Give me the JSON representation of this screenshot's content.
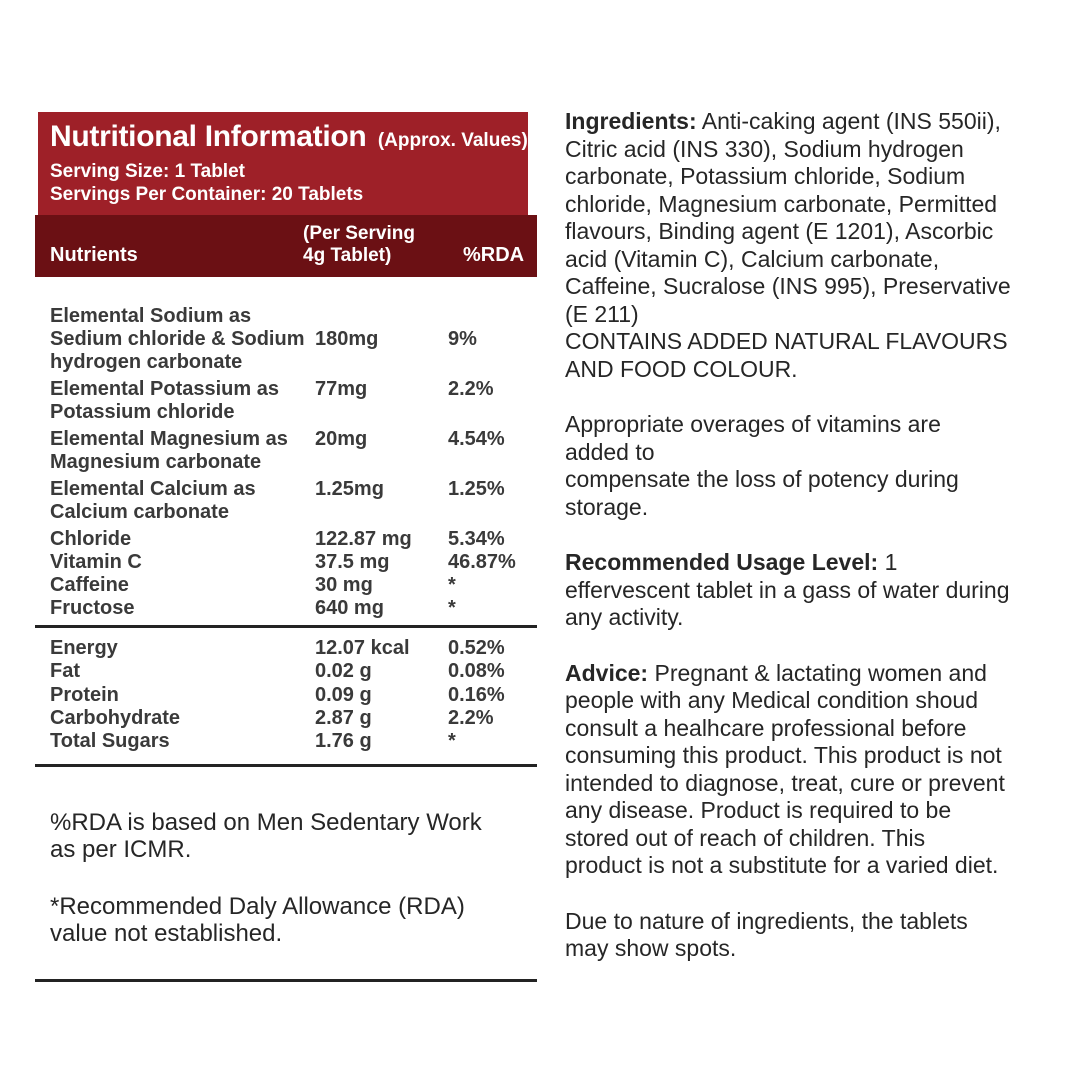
{
  "colors": {
    "header_red": "#9E2028",
    "header_dark": "#6B1014",
    "line": "#232323",
    "text_table": "#3A3A3A",
    "text_body": "#262626"
  },
  "nutrition": {
    "header": {
      "title": "Nutritional Information",
      "approx": "(Approx. Values)",
      "serving_size": "Serving Size: 1 Tablet",
      "servings_per_container": "Servings Per Container: 20 Tablets"
    },
    "table": {
      "columns": {
        "nutrients": "Nutrients",
        "per_serving": "(Per Serving\n4g Tablet)",
        "rda": "%RDA"
      },
      "rows_main": [
        {
          "name": "Elemental Sodium as\nSedium chloride & Sodium\nhydrogen carbonate",
          "value": "180mg",
          "rda": "9%"
        },
        {
          "name": "Elemental Potassium as\nPotassium chloride",
          "value": "77mg",
          "rda": "2.2%"
        },
        {
          "name": "Elemental Magnesium as\nMagnesium carbonate",
          "value": "20mg",
          "rda": "4.54%"
        },
        {
          "name": "Elemental Calcium as\nCalcium carbonate",
          "value": "1.25mg",
          "rda": "1.25%"
        },
        {
          "name": "Chloride",
          "value": "122.87 mg",
          "rda": "5.34%"
        },
        {
          "name": "Vitamin C",
          "value": "37.5 mg",
          "rda": "46.87%"
        },
        {
          "name": "Caffeine",
          "value": "30 mg",
          "rda": "*"
        },
        {
          "name": "Fructose",
          "value": "640 mg",
          "rda": "*"
        }
      ],
      "rows_macro": [
        {
          "name": "Energy",
          "value": "12.07 kcal",
          "rda": "0.52%"
        },
        {
          "name": "Fat",
          "value": "0.02 g",
          "rda": "0.08%"
        },
        {
          "name": "Protein",
          "value": "0.09 g",
          "rda": "0.16%"
        },
        {
          "name": "Carbohydrate",
          "value": "2.87 g",
          "rda": "2.2%"
        },
        {
          "name": "Total Sugars",
          "value": "1.76 g",
          "rda": "*"
        }
      ]
    },
    "footnotes": [
      "%RDA is based on Men Sedentary Work\nas per ICMR.",
      "*Recommended Daly Allowance (RDA)\nvalue not established."
    ]
  },
  "info": {
    "paragraphs": [
      {
        "label": "Ingredients:",
        "text": "Anti-caking agent (INS 550ii),\nCitric acid (INS 330), Sodium hydrogen\ncarbonate, Potassium chloride, Sodium\nchloride, Magnesium carbonate, Permitted\nflavours, Binding agent (E 1201), Ascorbic\nacid (Vitamin C), Calcium carbonate,\nCaffeine, Sucralose (INS 995), Preservative\n(E 211)\nCONTAINS ADDED NATURAL FLAVOURS\nAND FOOD COLOUR."
      },
      {
        "label": "",
        "text": "Appropriate overages of vitamins are\nadded to\ncompensate the loss of potency during\nstorage."
      },
      {
        "label": "Recommended Usage Level:",
        "text": "1\neffervescent tablet in a gass of water during\nany activity."
      },
      {
        "label": "Advice:",
        "text": "Pregnant & lactating women and\npeople with any Medical condition shoud\nconsult a healhcare professional before\nconsuming this product. This product is not\nintended to diagnose, treat, cure or prevent\nany disease. Product is required to be\nstored out of reach of children. This\nproduct is not a substitute for a varied diet."
      },
      {
        "label": "",
        "text": "Due to nature of ingredients, the tablets\nmay show spots."
      }
    ]
  }
}
